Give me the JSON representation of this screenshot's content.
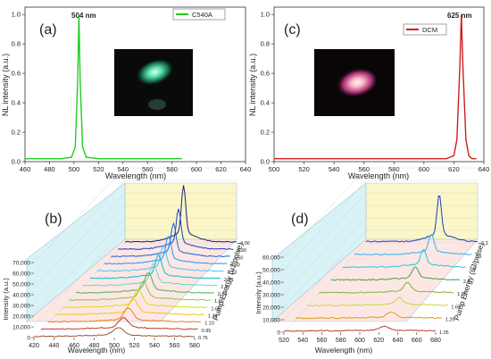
{
  "chart_data": [
    {
      "panel": "(a)",
      "type": "line",
      "xlabel": "Wavelength (nm)",
      "ylabel": "NL intensity (a.u.)",
      "xlim": [
        460,
        640
      ],
      "ylim": [
        0.0,
        1.05
      ],
      "x_ticks": [
        "460",
        "480",
        "500",
        "520",
        "540",
        "560",
        "580",
        "600",
        "620",
        "640"
      ],
      "y_ticks": [
        "0.0",
        "0.2",
        "0.4",
        "0.6",
        "0.8",
        "1.0"
      ],
      "legend": "C540A",
      "legend_position": "top-right",
      "peak_label": "504 nm",
      "series": [
        {
          "name": "C540A",
          "color": "#22cc22",
          "x": [
            460,
            470,
            480,
            490,
            498,
            501,
            503,
            504,
            505,
            507,
            510,
            520,
            540,
            560,
            580,
            588
          ],
          "y": [
            0.02,
            0.02,
            0.02,
            0.02,
            0.03,
            0.1,
            0.55,
            1.0,
            0.55,
            0.1,
            0.03,
            0.02,
            0.02,
            0.02,
            0.02,
            0.02
          ]
        }
      ]
    },
    {
      "panel": "(c)",
      "type": "line",
      "xlabel": "Wavelength (nm)",
      "ylabel": "NL intensity (a.u.)",
      "xlim": [
        500,
        640
      ],
      "ylim": [
        0.0,
        1.05
      ],
      "x_ticks": [
        "500",
        "520",
        "540",
        "560",
        "580",
        "600",
        "620",
        "640"
      ],
      "y_ticks": [
        "0.0",
        "0.2",
        "0.4",
        "0.6",
        "0.8",
        "1.0"
      ],
      "legend": "DCM",
      "legend_position": "top-center",
      "peak_label": "625 nm",
      "series": [
        {
          "name": "DCM",
          "color": "#cc1f1f",
          "x": [
            500,
            520,
            560,
            600,
            615,
            620,
            622,
            624,
            625,
            626,
            628,
            630,
            632,
            635
          ],
          "y": [
            0.02,
            0.02,
            0.02,
            0.02,
            0.02,
            0.04,
            0.15,
            0.65,
            1.0,
            0.65,
            0.15,
            0.04,
            0.02,
            0.02
          ]
        }
      ]
    },
    {
      "panel": "(b)",
      "type": "line",
      "xlabel": "Wavelength (nm)",
      "ylabel": "Intensity (a.u.)",
      "zlabel": "Pump Energy (uJ/pulse)",
      "xlim": [
        420,
        580
      ],
      "ylim": [
        0,
        70000
      ],
      "x_ticks": [
        "420",
        "440",
        "460",
        "480",
        "500",
        "520",
        "540",
        "560",
        "580"
      ],
      "y_ticks": [
        "0",
        "10,000",
        "20,000",
        "30,000",
        "40,000",
        "50,000",
        "60,000",
        "70,000"
      ],
      "pump_energies": [
        "0.75",
        "0.95",
        "1.10",
        "1.33",
        "1.66",
        "1.86",
        "2.13",
        "2.47",
        "2.91",
        "3.13",
        "3.30",
        "3.50",
        "3.90",
        "4.00"
      ],
      "peak_wavelength": 504,
      "peak_values": [
        7000,
        9000,
        11000,
        12500,
        14000,
        15000,
        16000,
        17000,
        18500,
        20000,
        22000,
        26000,
        32000,
        45000
      ],
      "colors": [
        "#a0522d",
        "#c0392b",
        "#e67e22",
        "#f1c40f",
        "#d4e10b",
        "#8bc34a",
        "#4caf50",
        "#66d9c5",
        "#00bcd4",
        "#4fc3f7",
        "#2196f3",
        "#1e63d6",
        "#1a3fbf",
        "#1a237e"
      ]
    },
    {
      "panel": "(d)",
      "type": "line",
      "xlabel": "Wavelength (nm)",
      "ylabel": "Intensity (a.u.)",
      "zlabel": "Pump Energy (uJ/pulse)",
      "xlim": [
        520,
        680
      ],
      "ylim": [
        0,
        60000
      ],
      "x_ticks": [
        "520",
        "540",
        "560",
        "580",
        "600",
        "620",
        "640",
        "660",
        "680"
      ],
      "y_ticks": [
        "0",
        "10,000",
        "20,000",
        "30,000",
        "40,000",
        "50,000",
        "60,000"
      ],
      "pump_energies": [
        "1.05",
        "1.25",
        "1.65",
        "1.93",
        "2.4",
        "2.8",
        "3.1",
        "3.3"
      ],
      "peak_wavelength": 625,
      "peak_values": [
        3000,
        4000,
        5000,
        7000,
        9000,
        12000,
        14000,
        32000
      ],
      "colors": [
        "#c0392b",
        "#d4a017",
        "#c6d63a",
        "#7cb342",
        "#43a047",
        "#26c6da",
        "#29b6f6",
        "#1a3fbf"
      ]
    }
  ],
  "panels": {
    "a": {
      "label": "(a)"
    },
    "b": {
      "label": "(b)"
    },
    "c": {
      "label": "(c)"
    },
    "d": {
      "label": "(d)"
    }
  }
}
